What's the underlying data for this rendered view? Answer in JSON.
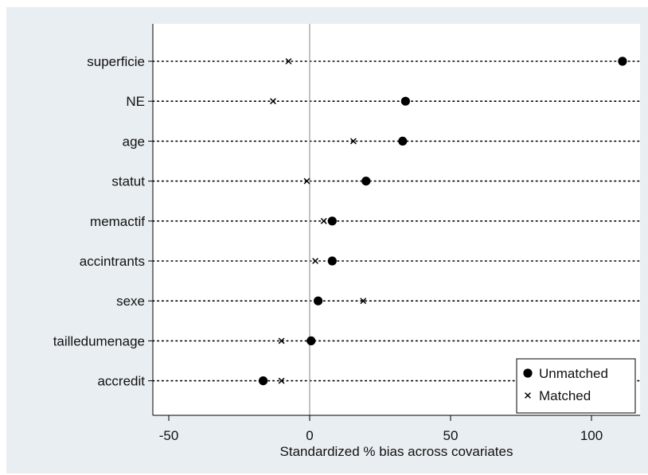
{
  "chart_data": {
    "type": "scatter",
    "categories": [
      "superficie",
      "NE",
      "age",
      "statut",
      "memactif",
      "accintrants",
      "sexe",
      "tailledumenage",
      "accredit"
    ],
    "series": [
      {
        "name": "Unmatched",
        "marker": "filled-circle",
        "color": "#000000",
        "values": [
          111,
          34,
          33,
          20,
          8,
          8,
          3,
          0.5,
          -16.5
        ]
      },
      {
        "name": "Matched",
        "marker": "x",
        "color": "#000000",
        "values": [
          -7.5,
          -13,
          15.5,
          -1,
          5,
          2,
          19,
          -10,
          -10
        ]
      }
    ],
    "xlabel": "Standardized % bias across covariates",
    "ylabel": "",
    "xticks": [
      -50,
      0,
      50,
      100
    ],
    "xlim": [
      -55,
      117
    ],
    "grid": "dotted horizontal line per covariate",
    "reference_line_x": 0,
    "legend_position": "bottom-right",
    "colors": {
      "outer_background": "#e9eef2",
      "plot_background": "#ffffff",
      "reference_line": "#999999",
      "dots": "#000000"
    }
  }
}
